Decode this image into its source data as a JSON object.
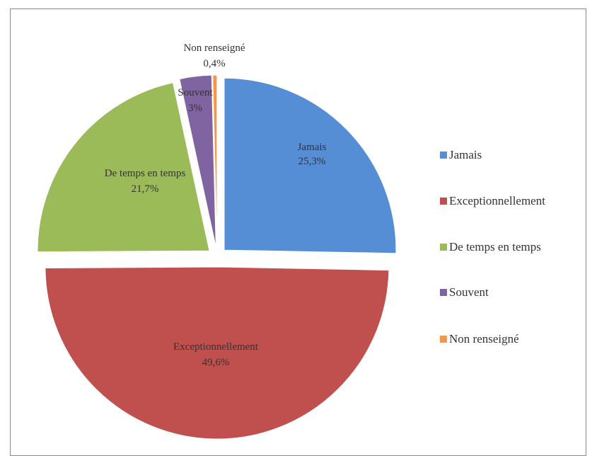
{
  "chart_data": {
    "type": "pie",
    "categories": [
      "Jamais",
      "Exceptionnellement",
      "De temps en temps",
      "Souvent",
      "Non renseigné"
    ],
    "values": [
      25.3,
      49.6,
      21.7,
      3,
      0.4
    ],
    "value_labels": [
      "25,3%",
      "49,6%",
      "21,7%",
      "3%",
      "0,4%"
    ],
    "colors": [
      "#558ED5",
      "#C0504D",
      "#9BBB59",
      "#8064A2",
      "#F79646"
    ],
    "exploded": true,
    "legend_position": "right"
  }
}
